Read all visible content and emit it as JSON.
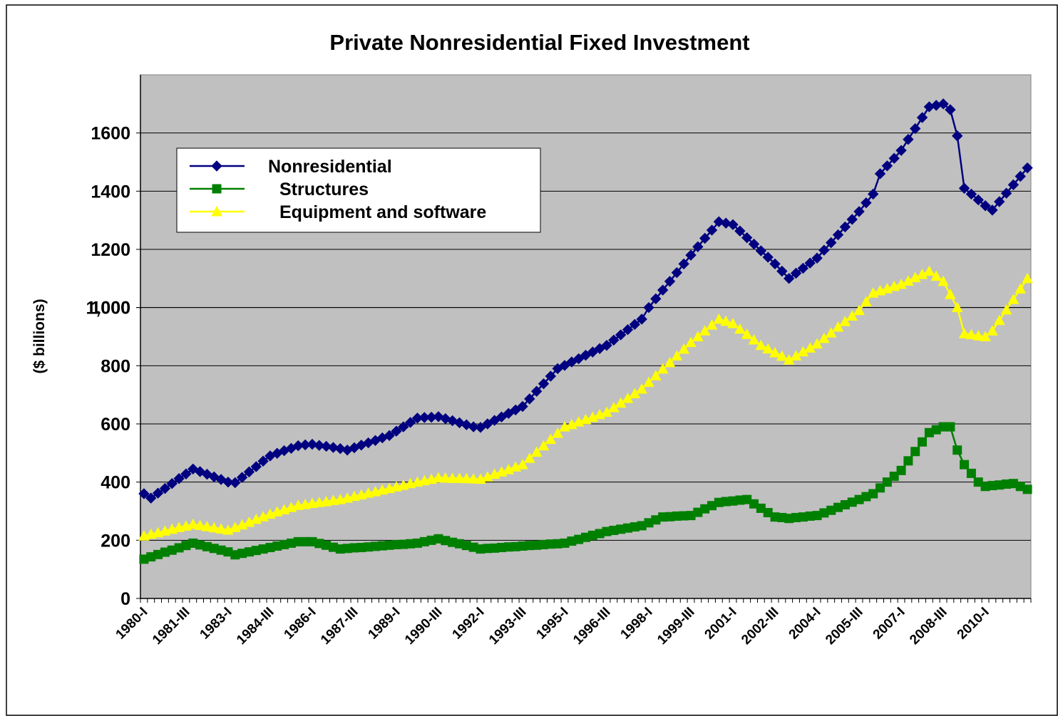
{
  "chart_data": {
    "type": "line",
    "title": "Private Nonresidential Fixed Investment",
    "y_label": "($ billions)",
    "categories": [
      "1980-I",
      null,
      null,
      null,
      null,
      null,
      "1981-III",
      null,
      null,
      null,
      null,
      null,
      "1983-I",
      null,
      null,
      null,
      null,
      null,
      "1984-III",
      null,
      null,
      null,
      null,
      null,
      "1986-I",
      null,
      null,
      null,
      null,
      null,
      "1987-III",
      null,
      null,
      null,
      null,
      null,
      "1989-I",
      null,
      null,
      null,
      null,
      null,
      "1990-III",
      null,
      null,
      null,
      null,
      null,
      "1992-I",
      null,
      null,
      null,
      null,
      null,
      "1993-III",
      null,
      null,
      null,
      null,
      null,
      "1995-I",
      null,
      null,
      null,
      null,
      null,
      "1996-III",
      null,
      null,
      null,
      null,
      null,
      "1998-I",
      null,
      null,
      null,
      null,
      null,
      "1999-III",
      null,
      null,
      null,
      null,
      null,
      "2001-I",
      null,
      null,
      null,
      null,
      null,
      "2002-III",
      null,
      null,
      null,
      null,
      null,
      "2004-I",
      null,
      null,
      null,
      null,
      null,
      "2005-III",
      null,
      null,
      null,
      null,
      null,
      "2007-I",
      null,
      null,
      null,
      null,
      null,
      "2008-III",
      null,
      null,
      null,
      null,
      null,
      "2010-I",
      null,
      null,
      null,
      null,
      null,
      null
    ],
    "series": [
      {
        "name": "Nonresidential",
        "color": "#000080",
        "marker": "diamond",
        "values": [
          360,
          345,
          362,
          378,
          395,
          412,
          428,
          445,
          436,
          427,
          418,
          409,
          400,
          398,
          416,
          435,
          453,
          472,
          490,
          499,
          508,
          516,
          525,
          528,
          530,
          526,
          523,
          519,
          515,
          510,
          518,
          527,
          535,
          543,
          552,
          560,
          575,
          590,
          605,
          620,
          622,
          623,
          625,
          618,
          611,
          604,
          597,
          590,
          588,
          600,
          612,
          624,
          636,
          648,
          660,
          686,
          712,
          738,
          764,
          790,
          801,
          813,
          824,
          836,
          847,
          859,
          870,
          888,
          906,
          924,
          942,
          960,
          1000,
          1030,
          1060,
          1090,
          1120,
          1150,
          1180,
          1209,
          1238,
          1266,
          1295,
          1290,
          1285,
          1263,
          1240,
          1218,
          1195,
          1173,
          1150,
          1125,
          1100,
          1118,
          1135,
          1153,
          1170,
          1197,
          1223,
          1250,
          1277,
          1303,
          1330,
          1360,
          1390,
          1460,
          1487,
          1513,
          1540,
          1578,
          1615,
          1653,
          1690,
          1695,
          1700,
          1680,
          1590,
          1410,
          1390,
          1370,
          1350,
          1335,
          1364,
          1393,
          1422,
          1451,
          1480
        ]
      },
      {
        "name": "Structures",
        "color": "#008000",
        "marker": "square",
        "values": [
          135,
          143,
          151,
          159,
          166,
          174,
          182,
          190,
          184,
          178,
          172,
          166,
          160,
          150,
          155,
          160,
          165,
          170,
          175,
          180,
          185,
          190,
          195,
          195,
          195,
          189,
          183,
          176,
          170,
          172,
          174,
          175,
          177,
          179,
          181,
          183,
          185,
          186,
          188,
          190,
          195,
          200,
          205,
          199,
          193,
          188,
          182,
          176,
          170,
          172,
          173,
          175,
          177,
          178,
          180,
          182,
          183,
          185,
          187,
          188,
          190,
          197,
          203,
          210,
          217,
          223,
          230,
          234,
          238,
          242,
          246,
          250,
          260,
          270,
          280,
          281,
          283,
          284,
          285,
          296,
          308,
          319,
          330,
          333,
          335,
          338,
          340,
          325,
          310,
          295,
          280,
          278,
          275,
          278,
          280,
          283,
          285,
          294,
          303,
          313,
          322,
          331,
          340,
          350,
          360,
          380,
          400,
          420,
          440,
          473,
          505,
          538,
          570,
          580,
          590,
          590,
          510,
          460,
          430,
          400,
          385,
          388,
          390,
          393,
          395,
          385,
          375
        ]
      },
      {
        "name": "Equipment and software",
        "color": "#ffff00",
        "marker": "triangle",
        "values": [
          215,
          221,
          226,
          232,
          238,
          244,
          249,
          255,
          251,
          247,
          243,
          239,
          235,
          244,
          253,
          262,
          272,
          281,
          290,
          298,
          305,
          313,
          320,
          323,
          327,
          330,
          333,
          337,
          340,
          345,
          351,
          356,
          362,
          367,
          373,
          378,
          384,
          389,
          395,
          400,
          405,
          410,
          415,
          414,
          413,
          413,
          412,
          411,
          410,
          418,
          427,
          435,
          443,
          452,
          460,
          482,
          503,
          525,
          547,
          568,
          590,
          598,
          607,
          615,
          623,
          632,
          640,
          656,
          672,
          688,
          704,
          720,
          743,
          766,
          789,
          811,
          834,
          857,
          880,
          900,
          920,
          940,
          960,
          953,
          945,
          926,
          908,
          889,
          870,
          858,
          845,
          833,
          820,
          834,
          848,
          861,
          875,
          894,
          913,
          933,
          952,
          971,
          990,
          1020,
          1050,
          1058,
          1065,
          1073,
          1080,
          1091,
          1103,
          1114,
          1125,
          1108,
          1090,
          1045,
          1000,
          910,
          907,
          903,
          900,
          920,
          956,
          992,
          1028,
          1064,
          1100
        ]
      }
    ],
    "ylim": [
      0,
      1800
    ],
    "yticks": [
      0,
      200,
      400,
      600,
      800,
      1000,
      1200,
      1400,
      1600,
      {
        "value": 1000,
        "label": "1,000"
      }
    ],
    "grid": true,
    "plot_background": "#c0c0c0",
    "legend": "upper left"
  }
}
